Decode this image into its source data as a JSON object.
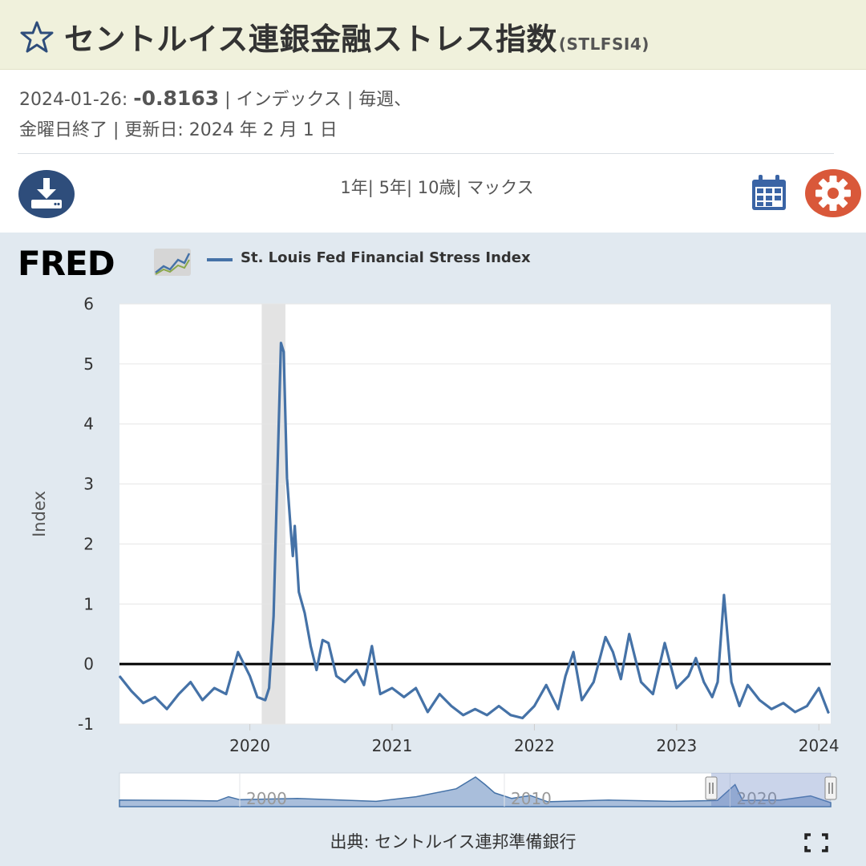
{
  "header": {
    "title": "セントルイス連銀金融ストレス指数",
    "series_id": "(STLFSI4)",
    "star_icon": "star-outline-icon"
  },
  "meta": {
    "date": "2024-01-26:",
    "value": "-0.8163",
    "line1_rest": "| インデックス | 毎週、",
    "line2": "金曜日終了 | 更新日: 2024 年 2 月 1 日"
  },
  "toolbar": {
    "download_icon": "download-icon",
    "ranges": [
      "1年",
      "5年",
      "10歳",
      "マックス"
    ],
    "calendar_icon": "calendar-icon",
    "settings_icon": "gear-icon"
  },
  "colors": {
    "series": "#4572a7",
    "download_bg": "#2e4d7b",
    "settings_bg": "#d9583a",
    "calendar": "#3a64a5",
    "title_bar": "#f0f1dc",
    "chart_panel": "#e1e9f0"
  },
  "chart": {
    "logo_text": "FRED",
    "legend_label": "St. Louis Fed Financial Stress Index",
    "source": "出典: セントルイス連邦準備銀行"
  },
  "chart_data": {
    "type": "line",
    "title": "",
    "xlabel": "",
    "ylabel": "Index",
    "ylim": [
      -1,
      6
    ],
    "yticks": [
      -1,
      0,
      1,
      2,
      3,
      4,
      5,
      6
    ],
    "ytick_labels": [
      "-1",
      "0",
      "1",
      "2",
      "3",
      "4",
      "5",
      "6"
    ],
    "xlim": [
      "2019-02",
      "2024-02"
    ],
    "xtick_labels": [
      "2020",
      "2021",
      "2022",
      "2023",
      "2024"
    ],
    "reference_line": 0,
    "shaded_regions": [
      {
        "start": "2020-02",
        "end": "2020-04"
      }
    ],
    "grid": "horizontal",
    "legend_position": "top-left",
    "series": [
      {
        "name": "St. Louis Fed Financial Stress Index",
        "points": [
          [
            "2019-02-01",
            -0.2
          ],
          [
            "2019-03-01",
            -0.45
          ],
          [
            "2019-04-01",
            -0.65
          ],
          [
            "2019-05-01",
            -0.55
          ],
          [
            "2019-06-01",
            -0.75
          ],
          [
            "2019-07-01",
            -0.5
          ],
          [
            "2019-08-01",
            -0.3
          ],
          [
            "2019-09-01",
            -0.6
          ],
          [
            "2019-10-01",
            -0.4
          ],
          [
            "2019-11-01",
            -0.5
          ],
          [
            "2019-12-01",
            0.2
          ],
          [
            "2020-01-01",
            -0.2
          ],
          [
            "2020-01-20",
            -0.55
          ],
          [
            "2020-02-10",
            -0.6
          ],
          [
            "2020-02-20",
            -0.4
          ],
          [
            "2020-03-01",
            0.8
          ],
          [
            "2020-03-10",
            3.0
          ],
          [
            "2020-03-20",
            5.35
          ],
          [
            "2020-03-27",
            5.2
          ],
          [
            "2020-04-05",
            3.1
          ],
          [
            "2020-04-15",
            2.2
          ],
          [
            "2020-04-20",
            1.8
          ],
          [
            "2020-04-25",
            2.3
          ],
          [
            "2020-05-05",
            1.2
          ],
          [
            "2020-05-20",
            0.85
          ],
          [
            "2020-06-05",
            0.3
          ],
          [
            "2020-06-20",
            -0.1
          ],
          [
            "2020-07-05",
            0.4
          ],
          [
            "2020-07-20",
            0.35
          ],
          [
            "2020-08-10",
            -0.2
          ],
          [
            "2020-09-01",
            -0.3
          ],
          [
            "2020-10-01",
            -0.1
          ],
          [
            "2020-10-20",
            -0.35
          ],
          [
            "2020-11-10",
            0.3
          ],
          [
            "2020-12-01",
            -0.5
          ],
          [
            "2021-01-01",
            -0.4
          ],
          [
            "2021-02-01",
            -0.55
          ],
          [
            "2021-03-01",
            -0.4
          ],
          [
            "2021-04-01",
            -0.8
          ],
          [
            "2021-05-01",
            -0.5
          ],
          [
            "2021-06-01",
            -0.7
          ],
          [
            "2021-07-01",
            -0.85
          ],
          [
            "2021-08-01",
            -0.75
          ],
          [
            "2021-09-01",
            -0.85
          ],
          [
            "2021-10-01",
            -0.7
          ],
          [
            "2021-11-01",
            -0.85
          ],
          [
            "2021-12-01",
            -0.9
          ],
          [
            "2022-01-01",
            -0.7
          ],
          [
            "2022-02-01",
            -0.35
          ],
          [
            "2022-03-01",
            -0.75
          ],
          [
            "2022-03-20",
            -0.2
          ],
          [
            "2022-04-10",
            0.2
          ],
          [
            "2022-05-01",
            -0.6
          ],
          [
            "2022-06-01",
            -0.3
          ],
          [
            "2022-07-01",
            0.45
          ],
          [
            "2022-07-20",
            0.2
          ],
          [
            "2022-08-10",
            -0.25
          ],
          [
            "2022-09-01",
            0.5
          ],
          [
            "2022-10-01",
            -0.3
          ],
          [
            "2022-11-01",
            -0.5
          ],
          [
            "2022-12-01",
            0.35
          ],
          [
            "2023-01-01",
            -0.4
          ],
          [
            "2023-02-01",
            -0.2
          ],
          [
            "2023-02-20",
            0.1
          ],
          [
            "2023-03-10",
            -0.3
          ],
          [
            "2023-04-01",
            -0.55
          ],
          [
            "2023-04-15",
            -0.3
          ],
          [
            "2023-05-01",
            1.15
          ],
          [
            "2023-05-20",
            -0.3
          ],
          [
            "2023-06-10",
            -0.7
          ],
          [
            "2023-07-01",
            -0.35
          ],
          [
            "2023-08-01",
            -0.6
          ],
          [
            "2023-09-01",
            -0.75
          ],
          [
            "2023-10-01",
            -0.65
          ],
          [
            "2023-11-01",
            -0.8
          ],
          [
            "2023-12-01",
            -0.7
          ],
          [
            "2024-01-01",
            -0.4
          ],
          [
            "2024-01-26",
            -0.82
          ]
        ]
      }
    ],
    "navigator": {
      "tick_labels": [
        "2000",
        "2010",
        "2020"
      ]
    }
  }
}
